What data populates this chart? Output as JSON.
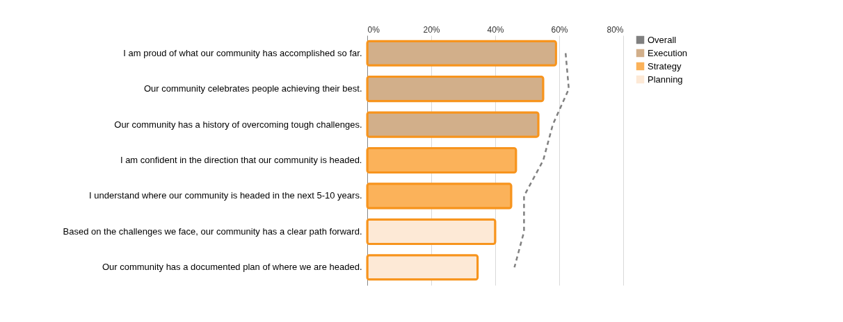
{
  "chart_data": {
    "type": "bar",
    "orientation": "horizontal",
    "categories": [
      "I am proud of what our community has accomplished so far.",
      "Our community celebrates people achieving their best.",
      "Our community has a history of overcoming tough challenges.",
      "I am confident in the direction that our community is headed.",
      "I understand where our community is headed in the next 5-10 years.",
      "Based on the challenges we face, our community has a clear path forward.",
      "Our community has a documented plan of where we are headed."
    ],
    "series": [
      {
        "name": "Overall",
        "type": "line",
        "color": "#808080",
        "line_style": "dashed",
        "marker": "none",
        "values": [
          62,
          63,
          58,
          55,
          49,
          49,
          46
        ]
      },
      {
        "name": "Execution",
        "color": "#d2af8a",
        "values": [
          59,
          55,
          53.5,
          null,
          null,
          null,
          null
        ]
      },
      {
        "name": "Strategy",
        "color": "#fbb25a",
        "values": [
          null,
          null,
          null,
          46.5,
          45,
          null,
          null
        ]
      },
      {
        "name": "Planning",
        "color": "#fde9d6",
        "values": [
          null,
          null,
          null,
          null,
          null,
          40,
          34.5
        ]
      }
    ],
    "xlim": [
      0,
      80
    ],
    "xticks": [
      {
        "value": 0,
        "label": "0%"
      },
      {
        "value": 20,
        "label": "20%"
      },
      {
        "value": 40,
        "label": "40%"
      },
      {
        "value": 60,
        "label": "60%"
      },
      {
        "value": 80,
        "label": "80%"
      }
    ],
    "grid": "x",
    "legend": "right"
  }
}
